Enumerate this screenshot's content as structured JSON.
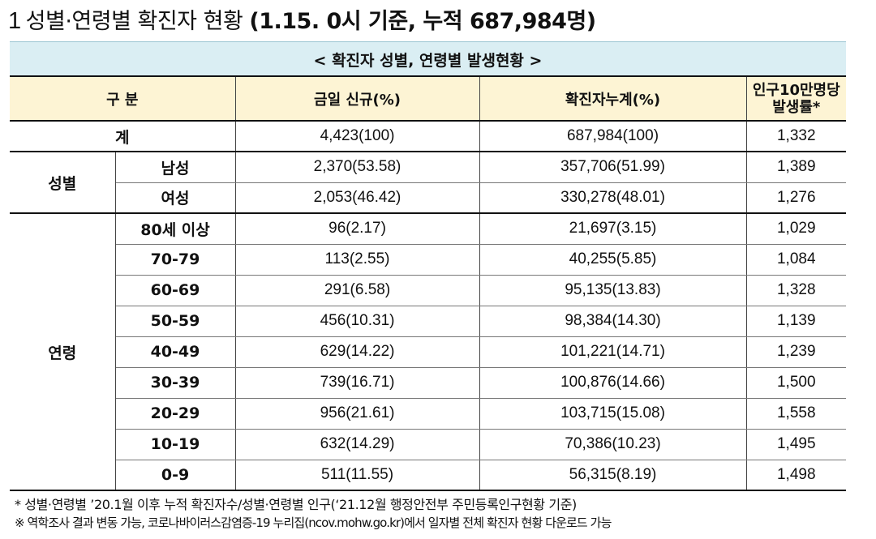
{
  "heading": {
    "number": "1",
    "title": "성별·연령별 확진자 현황",
    "basis": "(1.15. 0시 기준, 누적 687,984명)"
  },
  "caption": "< 확진자 성별, 연령별 발생현황 >",
  "table": {
    "headers": {
      "category": "구 분",
      "daily": "금일 신규(%)",
      "cumulative": "확진자누계(%)",
      "rate_line1": "인구10만명당",
      "rate_line2": "발생률*"
    },
    "total": {
      "label": "계",
      "daily": "4,423(100)",
      "cumulative": "687,984(100)",
      "rate": "1,332"
    },
    "sex": {
      "label": "성별",
      "rows": [
        {
          "label": "남성",
          "daily": "2,370(53.58)",
          "cumulative": "357,706(51.99)",
          "rate": "1,389"
        },
        {
          "label": "여성",
          "daily": "2,053(46.42)",
          "cumulative": "330,278(48.01)",
          "rate": "1,276"
        }
      ]
    },
    "age": {
      "label": "연령",
      "rows": [
        {
          "label": "80세 이상",
          "daily": "96(2.17)",
          "cumulative": "21,697(3.15)",
          "rate": "1,029"
        },
        {
          "label": "70-79",
          "daily": "113(2.55)",
          "cumulative": "40,255(5.85)",
          "rate": "1,084"
        },
        {
          "label": "60-69",
          "daily": "291(6.58)",
          "cumulative": "95,135(13.83)",
          "rate": "1,328"
        },
        {
          "label": "50-59",
          "daily": "456(10.31)",
          "cumulative": "98,384(14.30)",
          "rate": "1,139"
        },
        {
          "label": "40-49",
          "daily": "629(14.22)",
          "cumulative": "101,221(14.71)",
          "rate": "1,239"
        },
        {
          "label": "30-39",
          "daily": "739(16.71)",
          "cumulative": "100,876(14.66)",
          "rate": "1,500"
        },
        {
          "label": "20-29",
          "daily": "956(21.61)",
          "cumulative": "103,715(15.08)",
          "rate": "1,558"
        },
        {
          "label": "10-19",
          "daily": "632(14.29)",
          "cumulative": "70,386(10.23)",
          "rate": "1,495"
        },
        {
          "label": "0-9",
          "daily": "511(11.55)",
          "cumulative": "56,315(8.19)",
          "rate": "1,498"
        }
      ]
    }
  },
  "footnotes": [
    "* 성별·연령별 ’20.1월 이후 누적 확진자수/성별·연령별 인구(‘21.12월 행정안전부 주민등록인구현황 기준)",
    "※  역학조사 결과 변동 가능, 코로나바이러스감염증-19 누리집(ncov.mohw.go.kr)에서 일자별 전체 확진자 현황 다운로드 가능"
  ]
}
